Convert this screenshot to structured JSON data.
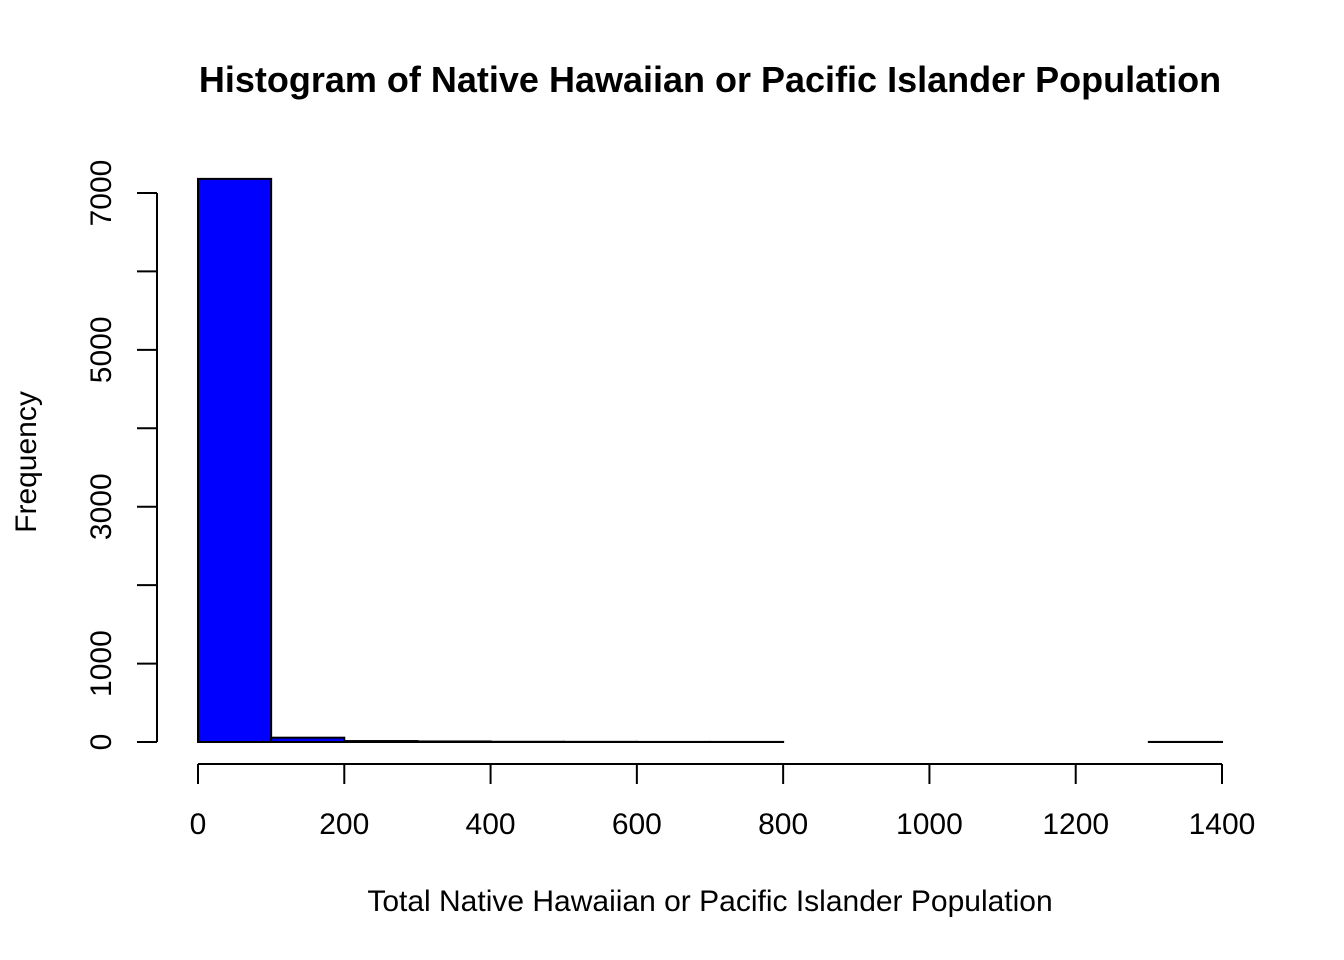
{
  "chart_data": {
    "type": "bar",
    "title": "Histogram of Native Hawaiian or Pacific Islander  Population",
    "xlabel": "Total Native Hawaiian or Pacific Islander Population",
    "ylabel": "Frequency",
    "bins": [
      {
        "start": 0,
        "end": 100,
        "count": 7180
      },
      {
        "start": 100,
        "end": 200,
        "count": 55
      },
      {
        "start": 200,
        "end": 300,
        "count": 12
      },
      {
        "start": 300,
        "end": 400,
        "count": 7
      },
      {
        "start": 400,
        "end": 500,
        "count": 3
      },
      {
        "start": 500,
        "end": 600,
        "count": 2
      },
      {
        "start": 600,
        "end": 700,
        "count": 1
      },
      {
        "start": 700,
        "end": 800,
        "count": 1
      },
      {
        "start": 800,
        "end": 900,
        "count": 0
      },
      {
        "start": 900,
        "end": 1000,
        "count": 0
      },
      {
        "start": 1000,
        "end": 1100,
        "count": 0
      },
      {
        "start": 1100,
        "end": 1200,
        "count": 0
      },
      {
        "start": 1200,
        "end": 1300,
        "count": 0
      },
      {
        "start": 1300,
        "end": 1400,
        "count": 1
      }
    ],
    "xlim": [
      0,
      1400
    ],
    "ylim": [
      0,
      7000
    ],
    "x_ticks": [
      0,
      200,
      400,
      600,
      800,
      1000,
      1200,
      1400
    ],
    "y_ticks": [
      0,
      1000,
      2000,
      3000,
      4000,
      5000,
      6000,
      7000
    ],
    "y_tick_labels": [
      "0",
      "",
      "",
      "3000",
      "",
      "5000",
      "",
      "7000"
    ],
    "y_tick_labels_full": [
      "0",
      "1000",
      "",
      "3000",
      "",
      "5000",
      "",
      "7000"
    ],
    "bar_color": "#0000ff",
    "grid": false,
    "legend": "none"
  }
}
